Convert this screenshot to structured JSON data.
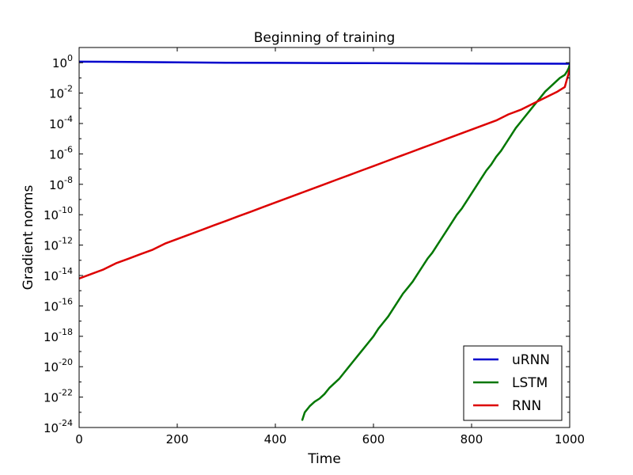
{
  "chart_data": {
    "type": "line",
    "title": "Beginning of training",
    "xlabel": "Time",
    "ylabel": "Gradient norms",
    "xlim": [
      0,
      1000
    ],
    "ylim_log10": [
      -24,
      1
    ],
    "yscale": "log",
    "grid": false,
    "legend_position": "lower-right",
    "x_ticks": [
      {
        "value": 0,
        "label": "0"
      },
      {
        "value": 200,
        "label": "200"
      },
      {
        "value": 400,
        "label": "400"
      },
      {
        "value": 600,
        "label": "600"
      },
      {
        "value": 800,
        "label": "800"
      },
      {
        "value": 1000,
        "label": "1000"
      }
    ],
    "y_ticks": [
      {
        "exp": 0,
        "base": "10",
        "power": "0"
      },
      {
        "exp": -2,
        "base": "10",
        "power": "-2"
      },
      {
        "exp": -4,
        "base": "10",
        "power": "-4"
      },
      {
        "exp": -6,
        "base": "10",
        "power": "-6"
      },
      {
        "exp": -8,
        "base": "10",
        "power": "-8"
      },
      {
        "exp": -10,
        "base": "10",
        "power": "-10"
      },
      {
        "exp": -12,
        "base": "10",
        "power": "-12"
      },
      {
        "exp": -14,
        "base": "10",
        "power": "-14"
      },
      {
        "exp": -16,
        "base": "10",
        "power": "-16"
      },
      {
        "exp": -18,
        "base": "10",
        "power": "-18"
      },
      {
        "exp": -20,
        "base": "10",
        "power": "-20"
      },
      {
        "exp": -22,
        "base": "10",
        "power": "-22"
      },
      {
        "exp": -24,
        "base": "10",
        "power": "-24"
      }
    ],
    "series": [
      {
        "name": "uRNN",
        "color": "#0000cc",
        "x": [
          0,
          100,
          200,
          300,
          400,
          500,
          600,
          700,
          800,
          900,
          1000
        ],
        "log10y": [
          0.07,
          0.05,
          0.02,
          0.0,
          -0.01,
          -0.02,
          -0.03,
          -0.04,
          -0.05,
          -0.06,
          -0.07
        ]
      },
      {
        "name": "LSTM",
        "color": "#007700",
        "x": [
          455,
          460,
          470,
          480,
          490,
          500,
          510,
          520,
          530,
          540,
          550,
          560,
          570,
          580,
          590,
          600,
          610,
          620,
          630,
          640,
          650,
          660,
          670,
          680,
          690,
          700,
          710,
          720,
          730,
          740,
          750,
          760,
          770,
          780,
          790,
          800,
          810,
          820,
          830,
          840,
          850,
          860,
          870,
          880,
          890,
          900,
          910,
          920,
          930,
          940,
          950,
          960,
          970,
          980,
          990,
          995,
          998,
          1000
        ],
        "log10y": [
          -23.5,
          -23.0,
          -22.6,
          -22.3,
          -22.1,
          -21.8,
          -21.4,
          -21.1,
          -20.8,
          -20.4,
          -20.0,
          -19.6,
          -19.2,
          -18.8,
          -18.4,
          -18.0,
          -17.5,
          -17.1,
          -16.7,
          -16.2,
          -15.7,
          -15.2,
          -14.8,
          -14.4,
          -13.9,
          -13.4,
          -12.9,
          -12.5,
          -12.0,
          -11.5,
          -11.0,
          -10.5,
          -10.0,
          -9.6,
          -9.1,
          -8.6,
          -8.1,
          -7.6,
          -7.1,
          -6.7,
          -6.2,
          -5.8,
          -5.3,
          -4.8,
          -4.3,
          -3.9,
          -3.5,
          -3.1,
          -2.7,
          -2.3,
          -1.9,
          -1.6,
          -1.3,
          -1.0,
          -0.8,
          -0.55,
          -0.35,
          -0.15
        ]
      },
      {
        "name": "RNN",
        "color": "#dd0000",
        "x": [
          0,
          25,
          50,
          75,
          100,
          125,
          150,
          175,
          200,
          225,
          250,
          275,
          300,
          325,
          350,
          375,
          400,
          425,
          450,
          475,
          500,
          525,
          550,
          575,
          600,
          625,
          650,
          675,
          700,
          725,
          750,
          775,
          800,
          825,
          850,
          875,
          900,
          925,
          950,
          975,
          990,
          1000
        ],
        "log10y": [
          -14.2,
          -13.9,
          -13.6,
          -13.2,
          -12.9,
          -12.6,
          -12.3,
          -11.9,
          -11.6,
          -11.3,
          -11.0,
          -10.7,
          -10.4,
          -10.1,
          -9.8,
          -9.5,
          -9.2,
          -8.9,
          -8.6,
          -8.3,
          -8.0,
          -7.7,
          -7.4,
          -7.1,
          -6.8,
          -6.5,
          -6.2,
          -5.9,
          -5.6,
          -5.3,
          -5.0,
          -4.7,
          -4.4,
          -4.1,
          -3.8,
          -3.4,
          -3.1,
          -2.7,
          -2.3,
          -1.9,
          -1.6,
          -0.45
        ]
      }
    ]
  }
}
